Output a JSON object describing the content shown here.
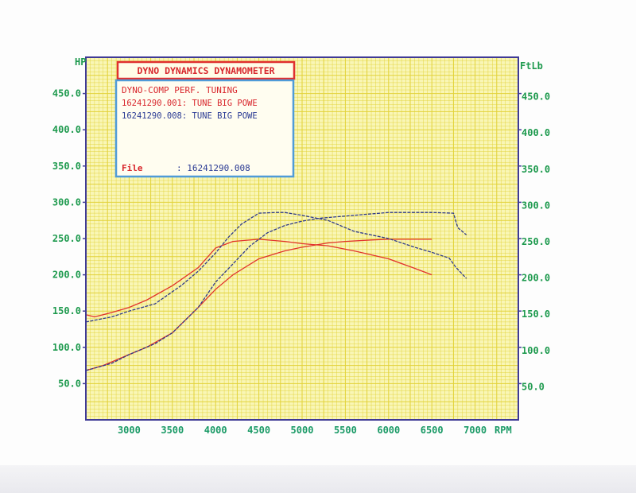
{
  "colors": {
    "paper": "#f9f6b6",
    "grid": "#e2d238",
    "frame": "#3f3a96",
    "tick_text": "#1e9a4e",
    "rpm_text": "#1a9a66",
    "series_red": "#e1322c",
    "series_blue": "#2f3a8a",
    "title_text": "#d8262c",
    "title_border": "#e03030",
    "info_border": "#4f9bd8",
    "info_blue_text": "#2b3b94"
  },
  "chart_data": {
    "type": "line",
    "left_axis_label": "HP",
    "right_axis_label": "FtLb",
    "x_axis_label": "RPM",
    "xlim": [
      2500,
      7500
    ],
    "ylim": [
      0,
      500
    ],
    "x_ticks": [
      3000,
      3500,
      4000,
      4500,
      5000,
      5500,
      6000,
      6500,
      7000
    ],
    "x_tick_labels": [
      "3000",
      "3500",
      "4000",
      "4500",
      "5000",
      "5500",
      "6000",
      "6500",
      "7000"
    ],
    "left_ticks": [
      50,
      100,
      150,
      200,
      250,
      300,
      350,
      400,
      450
    ],
    "left_tick_labels": [
      "50.0",
      "100.0",
      "150.0",
      "200.0",
      "250.0",
      "300.0",
      "350.0",
      "400.0",
      "450.0"
    ],
    "right_ticks": [
      50,
      100,
      150,
      200,
      250,
      300,
      350,
      400,
      450
    ],
    "right_tick_labels": [
      "50.0",
      "100.0",
      "150.0",
      "200.0",
      "250.0",
      "300.0",
      "350.0",
      "400.0",
      "450.0"
    ],
    "grid": true,
    "legend_box": {
      "title": "DYNO DYNAMICS DYNAMOMETER",
      "header": "DYNO-COMP PERF. TUNING",
      "run_red": "16241290.001: TUNE BIG POWE",
      "run_blue": "16241290.008: TUNE BIG POWE",
      "file_label": "File",
      "file_value": ": 16241290.008"
    },
    "series": [
      {
        "color": "red",
        "dashed": false,
        "x": [
          2500,
          2700,
          3000,
          3200,
          3500,
          3800,
          4000,
          4200,
          4500,
          4800,
          5000,
          5300,
          5500,
          5800,
          6000,
          6200,
          6500
        ],
        "y": [
          68,
          75,
          90,
          100,
          120,
          155,
          180,
          200,
          222,
          233,
          238,
          244,
          246,
          248,
          249,
          249,
          249
        ]
      },
      {
        "color": "red",
        "dashed": false,
        "x": [
          2500,
          2600,
          2800,
          3000,
          3200,
          3500,
          3800,
          4000,
          4200,
          4500,
          4800,
          5000,
          5300,
          5600,
          6000,
          6300,
          6500
        ],
        "y": [
          145,
          142,
          148,
          155,
          165,
          185,
          210,
          237,
          246,
          249,
          246,
          243,
          240,
          233,
          222,
          209,
          200
        ]
      },
      {
        "color": "blue",
        "dashed": true,
        "x": [
          2500,
          2800,
          3000,
          3300,
          3500,
          3800,
          4000,
          4200,
          4400,
          4600,
          4800,
          5000,
          5200,
          5500,
          5800,
          6000,
          6300,
          6500,
          6750,
          6800,
          6900
        ],
        "y": [
          68,
          78,
          90,
          105,
          120,
          155,
          190,
          215,
          240,
          258,
          268,
          274,
          278,
          281,
          284,
          286,
          286,
          286,
          285,
          265,
          255
        ]
      },
      {
        "color": "blue",
        "dashed": true,
        "x": [
          2500,
          2800,
          3000,
          3300,
          3600,
          3800,
          4000,
          4150,
          4300,
          4500,
          4700,
          4800,
          5000,
          5300,
          5600,
          6000,
          6300,
          6500,
          6700,
          6780,
          6900
        ],
        "y": [
          135,
          142,
          150,
          160,
          185,
          205,
          230,
          252,
          270,
          285,
          286,
          286,
          282,
          275,
          260,
          250,
          238,
          231,
          223,
          210,
          195
        ]
      }
    ]
  }
}
